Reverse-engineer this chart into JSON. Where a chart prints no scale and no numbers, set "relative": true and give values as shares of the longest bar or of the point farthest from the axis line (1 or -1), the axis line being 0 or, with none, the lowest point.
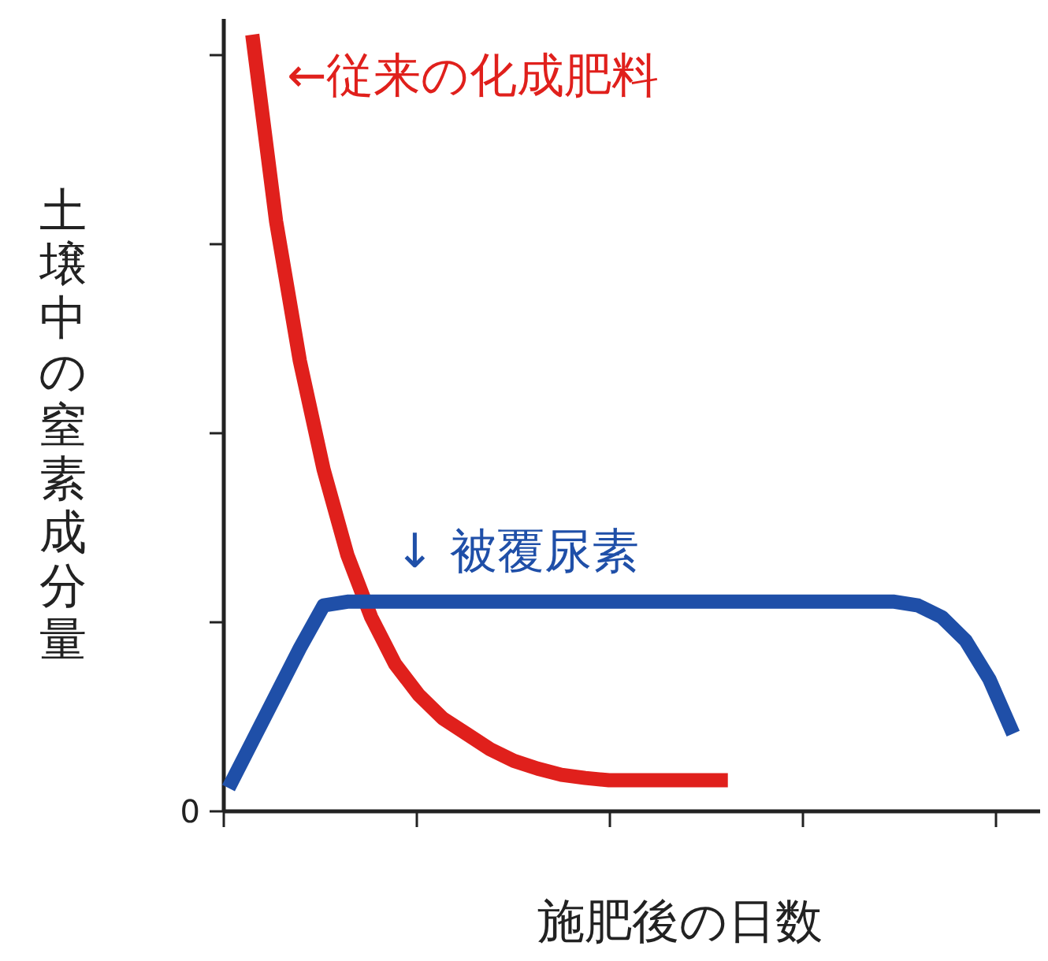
{
  "chart_data": {
    "type": "line",
    "relative": true,
    "xlabel": "施肥後の日数",
    "ylabel": "土壌中の窒素成分量",
    "annotations": [
      "0"
    ],
    "categories": [
      null,
      null,
      null,
      null,
      null,
      null,
      null,
      null,
      null,
      null,
      null,
      null,
      null,
      null,
      null,
      null,
      null,
      null,
      null,
      null,
      null,
      null,
      null,
      null,
      null,
      null,
      null,
      null,
      null,
      null,
      null,
      null,
      null,
      null,
      null
    ],
    "series": [
      {
        "name": "←従来の化成肥料",
        "color": "#e0201c",
        "values": [
          null,
          1.0,
          0.76,
          0.58,
          0.44,
          0.33,
          0.25,
          0.19,
          0.15,
          0.12,
          0.1,
          0.08,
          0.065,
          0.055,
          0.047,
          0.043,
          0.04,
          0.04,
          0.04,
          0.04,
          0.04,
          0.04,
          null,
          null,
          null,
          null,
          null,
          null,
          null,
          null,
          null,
          null,
          null,
          null,
          null
        ]
      },
      {
        "name": "↓ 被覆尿素",
        "color": "#1f4fa8",
        "values": [
          0.03,
          0.09,
          0.15,
          0.21,
          0.265,
          0.27,
          0.27,
          0.27,
          0.27,
          0.27,
          0.27,
          0.27,
          0.27,
          0.27,
          0.27,
          0.27,
          0.27,
          0.27,
          0.27,
          0.27,
          0.27,
          0.27,
          0.27,
          0.27,
          0.27,
          0.27,
          0.27,
          0.27,
          0.27,
          0.265,
          0.25,
          0.22,
          0.17,
          0.1,
          null
        ]
      }
    ]
  }
}
